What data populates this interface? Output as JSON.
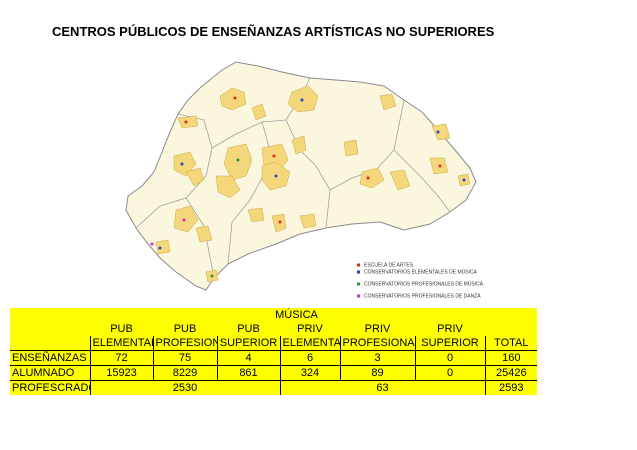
{
  "title": "CENTROS PÚBLICOS DE ENSEÑANZAS ARTÍSTICAS NO SUPERIORES",
  "legend": [
    {
      "label": "ESCUELA DE ARTES",
      "color": "#e0242c"
    },
    {
      "label": "CONSERVATORIOS ELEMENTALES DE MÚSICA",
      "color": "#2a3fd0"
    },
    {
      "label": "CONSERVATORIOS PROFESIONALES DE MÚSICA",
      "color": "#1f9a2e"
    },
    {
      "label": "CONSERVATORIOS PROFESIONALES DE DANZA",
      "color": "#d22ad0"
    }
  ],
  "table": {
    "group": "MÚSICA",
    "header_top": [
      "PUB",
      "PUB",
      "PUB",
      "PRIV",
      "PRIV",
      "PRIV"
    ],
    "header_bottom": [
      "ELEMENTAL",
      "PROFESIONAL",
      "SUPERIOR",
      "ELEMENTAL",
      "PROFESIONAL",
      "SUPERIOR",
      "TOTAL"
    ],
    "rows": [
      {
        "label": "ENSEÑANZAS",
        "cells": [
          72,
          75,
          4,
          6,
          3,
          0,
          160
        ]
      },
      {
        "label": "ALUMNADO",
        "cells": [
          15923,
          8229,
          861,
          324,
          89,
          0,
          25426
        ]
      },
      {
        "label": "PROFESCRADO",
        "cells": [
          2530,
          63,
          2593
        ]
      }
    ]
  }
}
